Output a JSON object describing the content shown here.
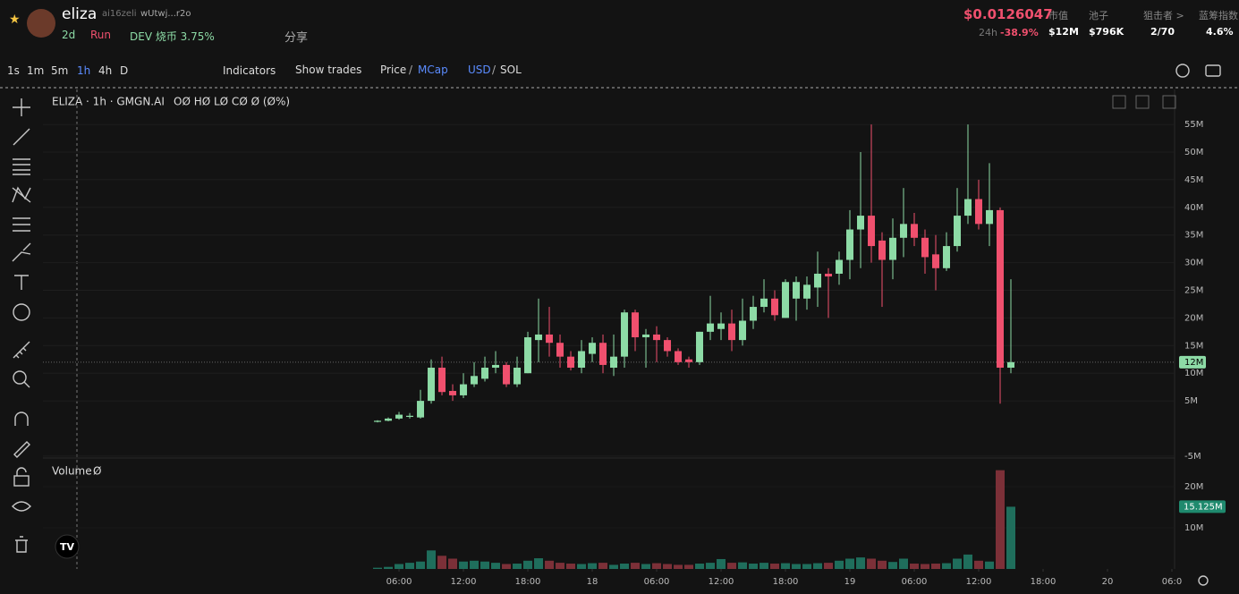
{
  "header": {
    "token": "eliza",
    "ticker": "ai16zeli",
    "address": "wUtwj...r2o",
    "age": "2d",
    "status": "Run",
    "dev": "DEV 烧币 3.75%",
    "share": "分享",
    "price": "$0.0126047",
    "change_period": "24h",
    "change": "-38.9%",
    "stats": [
      {
        "label": "市值",
        "value": "$12M"
      },
      {
        "label": "池子",
        "value": "$796K"
      },
      {
        "label": "狙击者 >",
        "value": "2/70"
      },
      {
        "label": "蓝筹指数",
        "value": "4.6%"
      }
    ]
  },
  "toolbar": {
    "intervals": [
      "1s",
      "1m",
      "5m",
      "1h",
      "4h",
      "D"
    ],
    "indicators": "Indicators",
    "show_trades": "Show trades",
    "price": "Price",
    "mcap": "MCap",
    "usd": "USD",
    "sol": "SOL",
    "separator": "/"
  },
  "chart_data": {
    "type": "candlestick",
    "title": "ELIZA · 1h · GMGN.AI",
    "legend": "OØ HØ LØ CØ Ø (Ø%)",
    "up_color": "#8ddba6",
    "down_color": "#f0506e",
    "xlim": [
      -31.17,
      74.25
    ],
    "xticks": [
      {
        "value": 2,
        "label": "06:00"
      },
      {
        "value": 8,
        "label": "12:00"
      },
      {
        "value": 14,
        "label": "18:00"
      },
      {
        "value": 20,
        "label": "18"
      },
      {
        "value": 26,
        "label": "06:00"
      },
      {
        "value": 32,
        "label": "12:00"
      },
      {
        "value": 38,
        "label": "18:00"
      },
      {
        "value": 44,
        "label": "19"
      },
      {
        "value": 50,
        "label": "06:00"
      },
      {
        "value": 56,
        "label": "12:00"
      },
      {
        "value": 62,
        "label": "18:00"
      },
      {
        "value": 68,
        "label": "20"
      },
      {
        "value": 74,
        "label": "06:0"
      }
    ],
    "ylim": [
      -5.34,
      61.33
    ],
    "yticks": [
      {
        "value": -5,
        "label": "-5M"
      },
      {
        "value": 5,
        "label": "5M"
      },
      {
        "value": 10,
        "label": "10M"
      },
      {
        "value": 15,
        "label": "15M"
      },
      {
        "value": 20,
        "label": "20M"
      },
      {
        "value": 25,
        "label": "25M"
      },
      {
        "value": 30,
        "label": "30M"
      },
      {
        "value": 35,
        "label": "35M"
      },
      {
        "value": 40,
        "label": "40M"
      },
      {
        "value": 45,
        "label": "45M"
      },
      {
        "value": 50,
        "label": "50M"
      },
      {
        "value": 55,
        "label": "55M"
      }
    ],
    "grid": true,
    "last_price": {
      "value": 12,
      "label": "12M"
    },
    "x": [
      0,
      1,
      2,
      3,
      4,
      5,
      6,
      7,
      8,
      9,
      10,
      11,
      12,
      13,
      14,
      15,
      16,
      17,
      18,
      19,
      20,
      21,
      22,
      23,
      24,
      25,
      26,
      27,
      28,
      29,
      30,
      31,
      32,
      33,
      34,
      35,
      36,
      37,
      38,
      39,
      40,
      41,
      42,
      43,
      44,
      45,
      46,
      47,
      48,
      49,
      50,
      51,
      52,
      53,
      54,
      55,
      56,
      57,
      58,
      59
    ],
    "open": [
      1.2,
      1.4,
      1.8,
      2.1,
      2,
      5,
      11,
      6.8,
      6,
      8,
      9,
      11,
      11.5,
      8,
      10,
      16,
      17,
      15.5,
      13,
      11,
      13.5,
      15.5,
      11,
      13,
      21,
      16.5,
      17,
      16,
      14,
      12.5,
      12,
      17.5,
      18,
      19,
      16,
      19.5,
      22,
      23.5,
      20,
      23.5,
      23.5,
      25.5,
      28,
      28,
      30.5,
      36,
      38.5,
      34,
      30.5,
      34.5,
      37,
      34.5,
      31.5,
      29,
      33,
      38.5,
      41.5,
      37,
      39.5,
      11
    ],
    "high": [
      1.5,
      2,
      3,
      2.8,
      7,
      12.5,
      13,
      8,
      10,
      12,
      13,
      14,
      12,
      13,
      17.5,
      23.5,
      22,
      17,
      14,
      16,
      16.5,
      17,
      17,
      21.5,
      21.5,
      18,
      18.5,
      16.5,
      14.5,
      13,
      17.5,
      24,
      21,
      21.5,
      23.5,
      24,
      27,
      25,
      27,
      27.5,
      27.5,
      32,
      29,
      32,
      39.5,
      50,
      55,
      35.5,
      38,
      43.5,
      39,
      36,
      35,
      35.5,
      43.5,
      55,
      45,
      48,
      40,
      27
    ],
    "low": [
      1.1,
      1.3,
      1.6,
      1.8,
      1.8,
      4.5,
      6,
      5,
      5.5,
      7.5,
      8.5,
      10,
      7.5,
      7.5,
      10,
      12,
      13,
      11,
      10.5,
      10,
      12,
      10,
      9.5,
      11,
      14,
      11,
      12,
      13,
      11.5,
      11,
      11.5,
      16,
      16,
      14,
      15,
      18,
      21,
      19.5,
      20,
      19.5,
      21.5,
      22,
      20,
      26,
      27,
      29,
      30,
      22,
      27,
      31,
      33,
      28,
      25,
      28.5,
      32,
      37,
      36,
      33,
      4.5,
      10
    ],
    "close": [
      1.4,
      1.8,
      2.5,
      2.3,
      5,
      11,
      6.6,
      6,
      8,
      9.5,
      11,
      11.5,
      8,
      11,
      16.5,
      17,
      15.5,
      13,
      11,
      14,
      15.5,
      11.5,
      13,
      21,
      16.5,
      17,
      16,
      14,
      12,
      12,
      17.5,
      19,
      19,
      16,
      19.5,
      22,
      23.5,
      20.5,
      26.5,
      26.5,
      26,
      28,
      27.5,
      30.5,
      36,
      38.5,
      33,
      30.5,
      34.5,
      37,
      34.5,
      31,
      29,
      33,
      38.5,
      41.5,
      37,
      39.5,
      11,
      12
    ],
    "volume": {
      "name": "Volume",
      "legend": "Ø",
      "ylim": [
        0,
        26.96
      ],
      "yticks": [
        {
          "value": 10,
          "label": "10M"
        },
        {
          "value": 20,
          "label": "20M"
        }
      ],
      "up_color": "#1f6e5c",
      "down_color": "#7c3038",
      "last": {
        "value": 15.125,
        "label": "15.125M"
      },
      "values": [
        0.3,
        0.5,
        1.2,
        1.5,
        1.8,
        4.5,
        3.2,
        2.5,
        1.8,
        2,
        1.8,
        1.5,
        1.2,
        1.3,
        2,
        2.6,
        2,
        1.5,
        1.3,
        1.2,
        1.4,
        1.5,
        1,
        1.3,
        1.5,
        1.2,
        1.4,
        1.2,
        1,
        1,
        1.3,
        1.5,
        2.4,
        1.5,
        1.6,
        1.3,
        1.5,
        1.3,
        1.4,
        1.2,
        1.2,
        1.4,
        1.5,
        2,
        2.5,
        2.8,
        2.5,
        2,
        1.7,
        2.5,
        1.3,
        1.2,
        1.3,
        1.4,
        2.5,
        3.5,
        2,
        1.8,
        24,
        15.125
      ]
    }
  }
}
